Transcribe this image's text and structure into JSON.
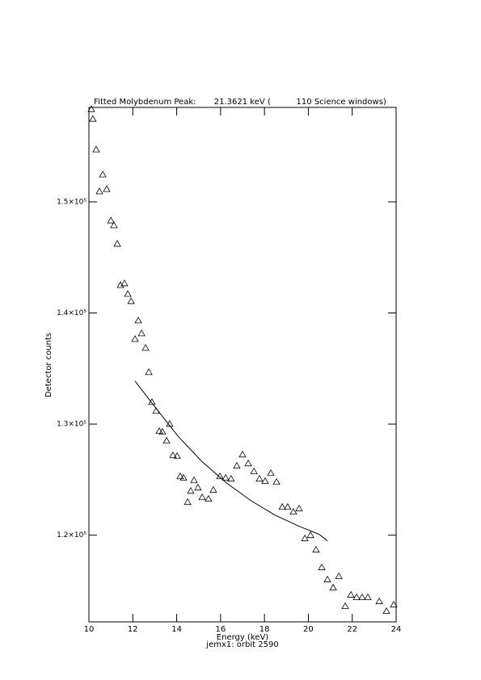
{
  "chart_data": {
    "type": "scatter",
    "title": "Fitted Molybdenum Peak:       21.3621 keV (          110 Science windows)",
    "x_label": "Energy (keV)",
    "subtitle": "jemx1: orbit 2590",
    "y_label": "Detector counts",
    "xlim": [
      10,
      24
    ],
    "ylim": [
      112200,
      158500
    ],
    "xticks": [
      10,
      12,
      14,
      16,
      18,
      20,
      22,
      24
    ],
    "yticks": [
      {
        "value": 120000,
        "label": "1.2×10⁵"
      },
      {
        "value": 130000,
        "label": "1.3×10⁵"
      },
      {
        "value": 140000,
        "label": "1.4×10⁵"
      },
      {
        "value": 150000,
        "label": "1.5×10⁵"
      }
    ],
    "series": [
      {
        "mode": "markers",
        "color": "#000000",
        "x": [
          10.11,
          10.18,
          10.33,
          10.48,
          10.63,
          10.81,
          11.0,
          11.14,
          11.29,
          11.44,
          11.62,
          11.77,
          11.92,
          12.1,
          12.25,
          12.4,
          12.58,
          12.73,
          12.87,
          13.06,
          13.21,
          13.35,
          13.54,
          13.68,
          13.83,
          14.02,
          14.16,
          14.31,
          14.5,
          14.64,
          14.79,
          14.97,
          15.16,
          15.45,
          15.67,
          15.97,
          16.23,
          16.48,
          16.74,
          17.0,
          17.26,
          17.52,
          17.77,
          18.03,
          18.29,
          18.55,
          18.81,
          19.06,
          19.32,
          19.58,
          19.84,
          20.1,
          20.35,
          20.61,
          20.87,
          21.13,
          21.39,
          21.68,
          21.94,
          22.2,
          22.45,
          22.71,
          23.23,
          23.56,
          23.89
        ],
        "values": [
          158340,
          157470,
          154710,
          150940,
          152460,
          151150,
          148320,
          147890,
          146220,
          142510,
          142660,
          141710,
          141060,
          137650,
          139320,
          138160,
          136850,
          134670,
          131980,
          131180,
          129370,
          129300,
          128500,
          130020,
          127190,
          127120,
          125300,
          125160,
          122980,
          123990,
          124940,
          124280,
          123410,
          123270,
          124070,
          125300,
          125160,
          125080,
          126250,
          127260,
          126460,
          125740,
          125080,
          124870,
          125590,
          124790,
          122540,
          122540,
          122110,
          122400,
          119710,
          120000,
          118690,
          117100,
          116010,
          115280,
          116300,
          113610,
          114630,
          114410,
          114410,
          114410,
          114050,
          113170,
          113750
        ]
      },
      {
        "mode": "line",
        "color": "#000000",
        "x": [
          12.1,
          12.95,
          14.05,
          15.16,
          16.26,
          17.37,
          18.47,
          19.58,
          20.5,
          20.87
        ],
        "values": [
          133870,
          131690,
          128930,
          126610,
          124720,
          123120,
          121820,
          120800,
          120070,
          119490
        ]
      }
    ]
  }
}
